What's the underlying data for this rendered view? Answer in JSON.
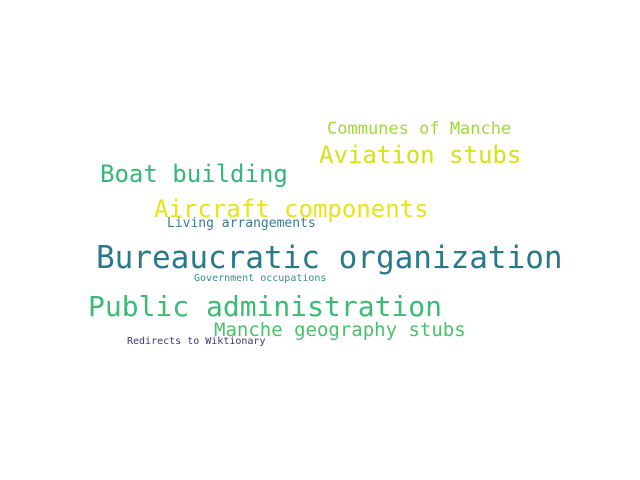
{
  "word_cloud": {
    "words": [
      {
        "text": "Communes of Manche",
        "color": "#a0da39"
      },
      {
        "text": "Aviation stubs",
        "color": "#d5e21a"
      },
      {
        "text": "Boat building",
        "color": "#35b779"
      },
      {
        "text": "Aircraft components",
        "color": "#e8e419"
      },
      {
        "text": "Living arrangements",
        "color": "#3e7a8e"
      },
      {
        "text": "Bureaucratic organization",
        "color": "#2a788e"
      },
      {
        "text": "Government occupations",
        "color": "#3b8a8c"
      },
      {
        "text": "Public administration",
        "color": "#3cbb75"
      },
      {
        "text": "Manche geography stubs",
        "color": "#4ac16d"
      },
      {
        "text": "Redirects to Wiktionary",
        "color": "#46337e"
      }
    ]
  }
}
